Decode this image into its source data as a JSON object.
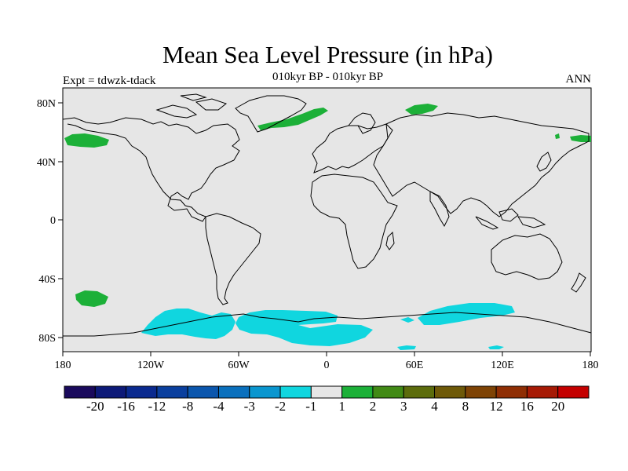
{
  "title": "Mean Sea Level Pressure (in hPa)",
  "subtitle": "010kyr BP - 010kyr BP",
  "left_label": "Expt = tdwzk-tdack",
  "right_label": "ANN",
  "map": {
    "lon_ticks": [
      "180",
      "120W",
      "60W",
      "0",
      "60E",
      "120E",
      "180"
    ],
    "lat_ticks": [
      "80N",
      "40N",
      "0",
      "40S",
      "80S"
    ],
    "background": "#e6e6e6"
  },
  "colorbar": {
    "colors": [
      "#1a0a5c",
      "#0d1a78",
      "#0a2a8f",
      "#0a3f9e",
      "#0b56ad",
      "#0a70bd",
      "#0a96cf",
      "#10d6df",
      "#e6e6e6",
      "#1cb038",
      "#418a15",
      "#5c6c0c",
      "#6e5908",
      "#7e4305",
      "#8f2e04",
      "#a61a05",
      "#c40000"
    ],
    "labels": [
      "-20",
      "-16",
      "-12",
      "-8",
      "-4",
      "-3",
      "-2",
      "-1",
      "1",
      "2",
      "3",
      "4",
      "8",
      "12",
      "16",
      "20"
    ]
  }
}
